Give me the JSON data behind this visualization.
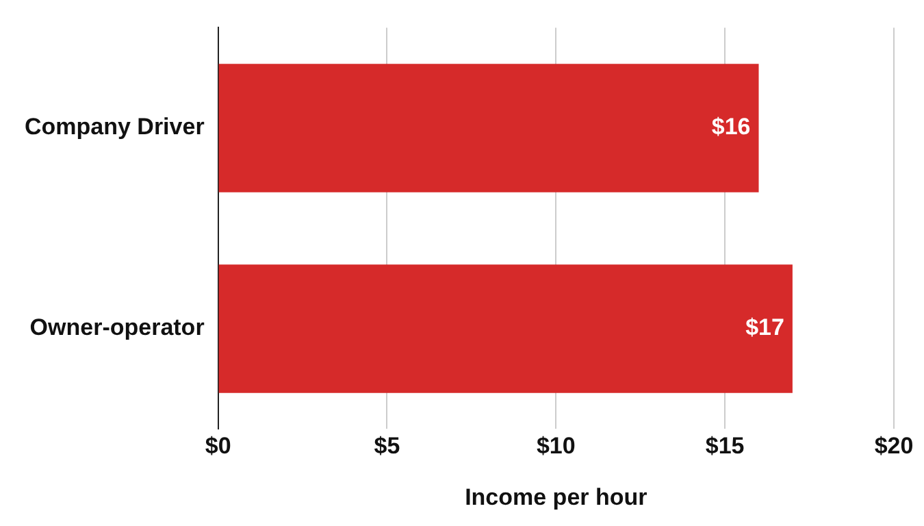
{
  "chart_data": {
    "type": "bar",
    "orientation": "horizontal",
    "xlabel": "Income per hour",
    "categories": [
      "Company Driver",
      "Owner-operator"
    ],
    "values": [
      16,
      17
    ],
    "color": "#d62a2a",
    "value_labels": [
      "$16",
      "$17"
    ],
    "xlim": [
      0,
      20
    ],
    "xticks": [
      {
        "value": 0,
        "label": "$0"
      },
      {
        "value": 5,
        "label": "$5"
      },
      {
        "value": 10,
        "label": "$10"
      },
      {
        "value": 15,
        "label": "$15"
      },
      {
        "value": 20,
        "label": "$20"
      }
    ],
    "grid": "x"
  }
}
